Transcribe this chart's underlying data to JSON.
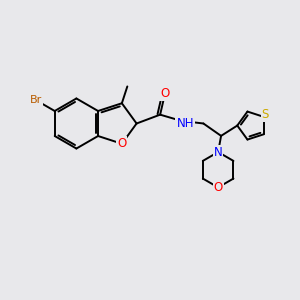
{
  "background_color": "#e8e8eb",
  "atom_colors": {
    "Br": "#b85c00",
    "O": "#ff0000",
    "N": "#0000ff",
    "S": "#ccaa00",
    "C": "#000000"
  },
  "bond_width": 1.4,
  "font_size": 8.5
}
